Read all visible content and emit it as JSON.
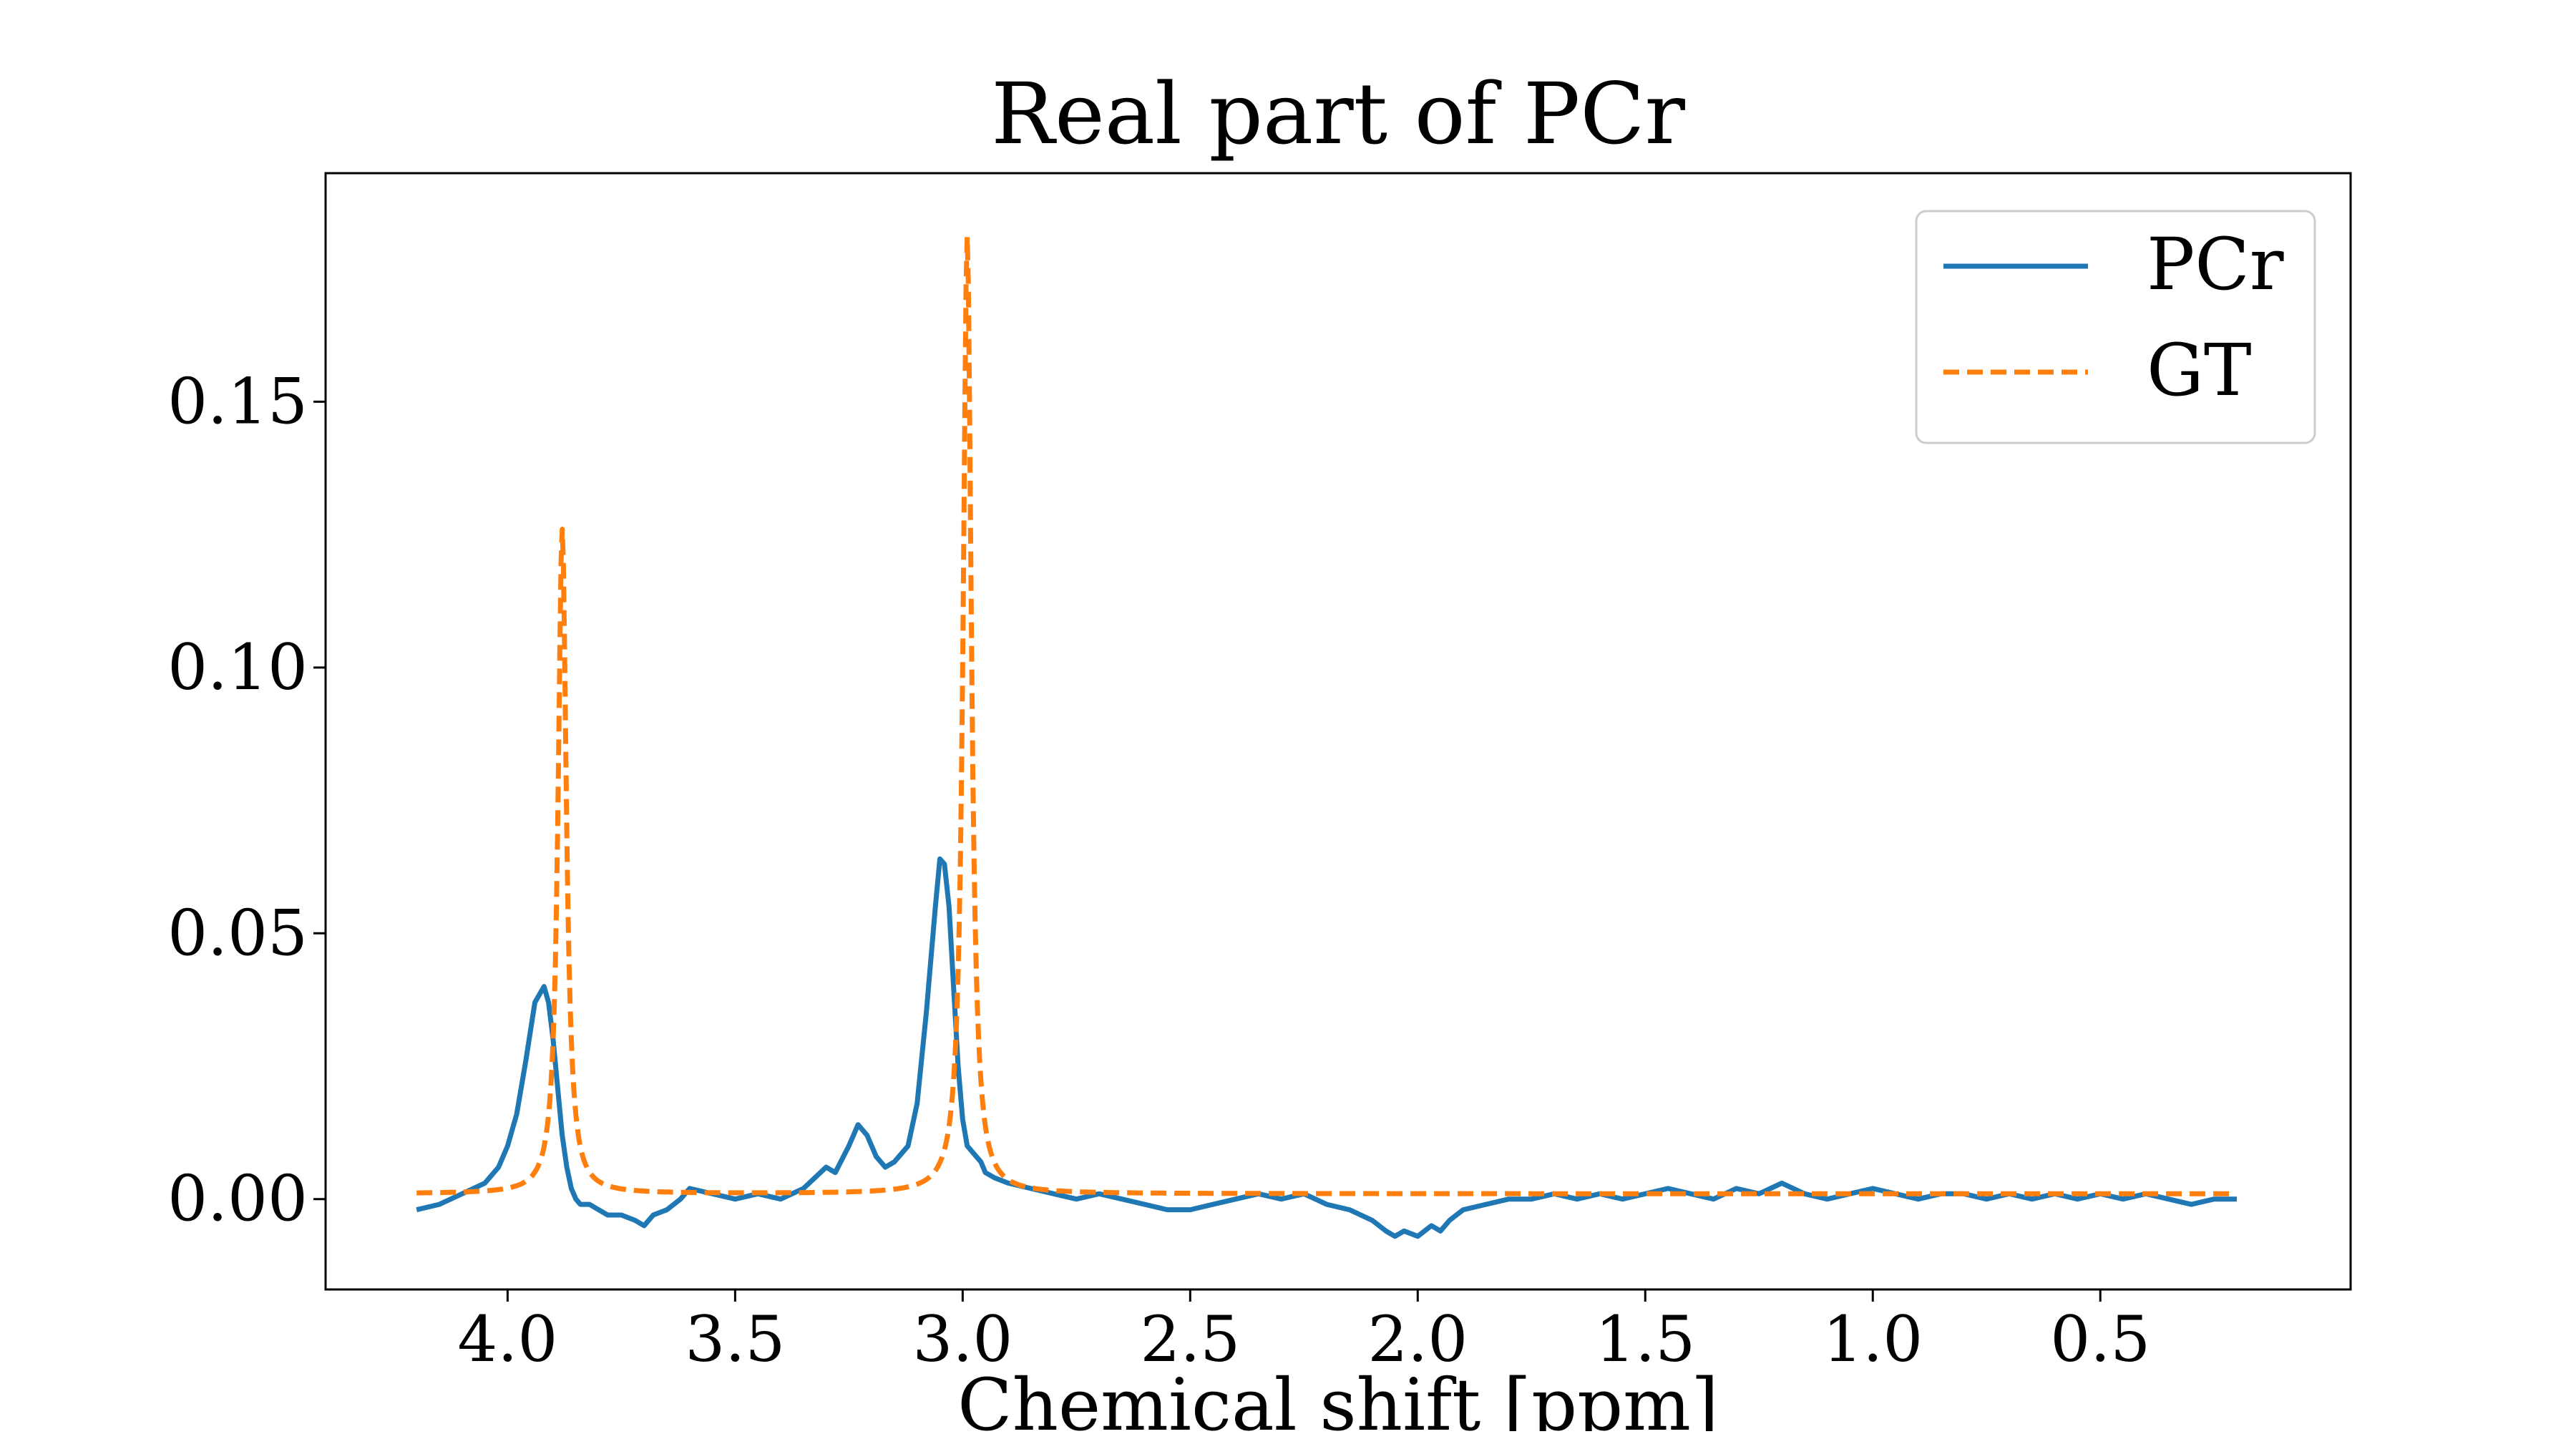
{
  "chart_data": {
    "type": "line",
    "title": "Real part of PCr",
    "xlabel": "Chemical shift [ppm]",
    "ylabel": "",
    "x_inverted": true,
    "xlim": [
      4.4,
      -0.05
    ],
    "ylim": [
      -0.017,
      0.193
    ],
    "xticks": [
      {
        "value": 4.0,
        "label": "4.0"
      },
      {
        "value": 3.5,
        "label": "3.5"
      },
      {
        "value": 3.0,
        "label": "3.0"
      },
      {
        "value": 2.5,
        "label": "2.5"
      },
      {
        "value": 2.0,
        "label": "2.0"
      },
      {
        "value": 1.5,
        "label": "1.5"
      },
      {
        "value": 1.0,
        "label": "1.0"
      },
      {
        "value": 0.5,
        "label": "0.5"
      }
    ],
    "yticks": [
      {
        "value": 0.0,
        "label": "0.00"
      },
      {
        "value": 0.05,
        "label": "0.05"
      },
      {
        "value": 0.1,
        "label": "0.10"
      },
      {
        "value": 0.15,
        "label": "0.15"
      }
    ],
    "grid": false,
    "legend_position": "top-right",
    "series": [
      {
        "name": "PCr",
        "color": "#1f77b4",
        "style": "solid",
        "x": [
          4.2,
          4.15,
          4.1,
          4.05,
          4.02,
          4.0,
          3.98,
          3.96,
          3.94,
          3.92,
          3.91,
          3.9,
          3.89,
          3.88,
          3.87,
          3.86,
          3.85,
          3.84,
          3.82,
          3.8,
          3.78,
          3.75,
          3.72,
          3.7,
          3.68,
          3.65,
          3.62,
          3.6,
          3.55,
          3.5,
          3.45,
          3.4,
          3.35,
          3.3,
          3.28,
          3.25,
          3.23,
          3.21,
          3.19,
          3.17,
          3.15,
          3.12,
          3.1,
          3.08,
          3.06,
          3.05,
          3.04,
          3.03,
          3.02,
          3.01,
          3.0,
          2.99,
          2.98,
          2.97,
          2.96,
          2.95,
          2.93,
          2.9,
          2.85,
          2.8,
          2.75,
          2.7,
          2.65,
          2.6,
          2.55,
          2.5,
          2.45,
          2.4,
          2.35,
          2.3,
          2.25,
          2.2,
          2.15,
          2.1,
          2.07,
          2.05,
          2.03,
          2.0,
          1.97,
          1.95,
          1.93,
          1.9,
          1.85,
          1.8,
          1.75,
          1.7,
          1.65,
          1.6,
          1.55,
          1.5,
          1.45,
          1.4,
          1.35,
          1.3,
          1.25,
          1.2,
          1.15,
          1.1,
          1.05,
          1.0,
          0.95,
          0.9,
          0.85,
          0.8,
          0.75,
          0.7,
          0.65,
          0.6,
          0.55,
          0.5,
          0.45,
          0.4,
          0.35,
          0.3,
          0.25,
          0.2
        ],
        "y": [
          -0.002,
          -0.001,
          0.001,
          0.003,
          0.006,
          0.01,
          0.016,
          0.026,
          0.037,
          0.04,
          0.037,
          0.03,
          0.021,
          0.012,
          0.006,
          0.002,
          0.0,
          -0.001,
          -0.001,
          -0.002,
          -0.003,
          -0.003,
          -0.004,
          -0.005,
          -0.003,
          -0.002,
          0.0,
          0.002,
          0.001,
          0.0,
          0.001,
          0.0,
          0.002,
          0.006,
          0.005,
          0.01,
          0.014,
          0.012,
          0.008,
          0.006,
          0.007,
          0.01,
          0.018,
          0.035,
          0.055,
          0.064,
          0.063,
          0.055,
          0.04,
          0.025,
          0.015,
          0.01,
          0.009,
          0.008,
          0.007,
          0.005,
          0.004,
          0.003,
          0.002,
          0.001,
          0.0,
          0.001,
          0.0,
          -0.001,
          -0.002,
          -0.002,
          -0.001,
          0.0,
          0.001,
          0.0,
          0.001,
          -0.001,
          -0.002,
          -0.004,
          -0.006,
          -0.007,
          -0.006,
          -0.007,
          -0.005,
          -0.006,
          -0.004,
          -0.002,
          -0.001,
          0.0,
          0.0,
          0.001,
          0.0,
          0.001,
          0.0,
          0.001,
          0.002,
          0.001,
          0.0,
          0.002,
          0.001,
          0.003,
          0.001,
          0.0,
          0.001,
          0.002,
          0.001,
          0.0,
          0.001,
          0.001,
          0.0,
          0.001,
          0.0,
          0.001,
          0.0,
          0.001,
          0.0,
          0.001,
          0.0,
          -0.001,
          0.0,
          0.0
        ]
      },
      {
        "name": "GT",
        "color": "#ff7f0e",
        "style": "dashed",
        "model": "lorentzian",
        "baseline": 0.001,
        "peaks": [
          {
            "center": 3.88,
            "height": 0.126,
            "hwhm": 0.011
          },
          {
            "center": 2.99,
            "height": 0.181,
            "hwhm": 0.011
          }
        ],
        "x_range": [
          4.2,
          0.2
        ]
      }
    ]
  }
}
